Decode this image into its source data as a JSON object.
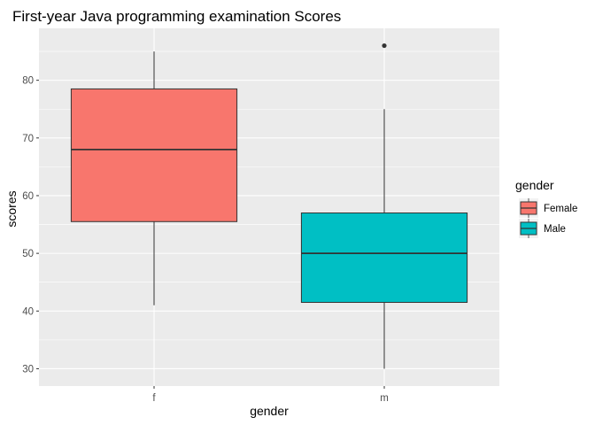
{
  "chart_data": {
    "type": "box",
    "title": "First-year Java programming examination Scores",
    "xlabel": "gender",
    "ylabel": "scores",
    "categories": [
      "f",
      "m"
    ],
    "ylim": [
      27,
      89
    ],
    "y_ticks": [
      30,
      40,
      50,
      60,
      70,
      80
    ],
    "grid": true,
    "legend": {
      "title": "gender",
      "position": "right",
      "entries": [
        {
          "label": "Female",
          "color": "#F8766D"
        },
        {
          "label": "Male",
          "color": "#00BFC4"
        }
      ]
    },
    "boxes": [
      {
        "category": "f",
        "min": 41,
        "q1": 55.5,
        "median": 68,
        "q3": 78.5,
        "max": 85,
        "outliers": [],
        "color": "#F8766D"
      },
      {
        "category": "m",
        "min": 30,
        "q1": 41.5,
        "median": 50,
        "q3": 57,
        "max": 75,
        "outliers": [
          86
        ],
        "color": "#00BFC4"
      }
    ]
  },
  "colors": {
    "panel_background": "#EBEBEB",
    "grid_major": "#FFFFFF",
    "box_outline": "#333333",
    "tick_text": "#4D4D4D"
  }
}
